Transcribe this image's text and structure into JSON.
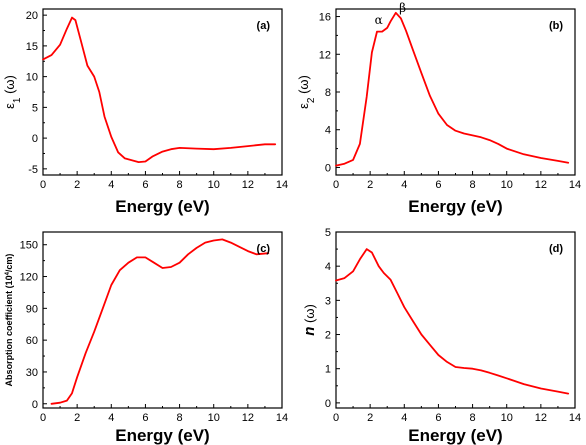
{
  "chart_data": [
    {
      "type": "line",
      "panel_label": "(a)",
      "xlabel": "Energy (eV)",
      "ylabel": "ε1 (ω)",
      "ylabel_parts": {
        "base": "ε",
        "sub": "1",
        "rest": " (ω)"
      },
      "xlim": [
        0,
        14
      ],
      "ylim": [
        -6,
        21
      ],
      "xticks": [
        0,
        2,
        4,
        6,
        8,
        10,
        12,
        14
      ],
      "yticks": [
        -5,
        0,
        5,
        10,
        15,
        20
      ],
      "color": "#ff0000",
      "annotations": [],
      "x": [
        0,
        0.5,
        1.0,
        1.4,
        1.7,
        1.9,
        2.2,
        2.6,
        3.0,
        3.3,
        3.6,
        4.0,
        4.4,
        4.8,
        5.2,
        5.6,
        6.0,
        6.4,
        7.0,
        7.5,
        8.0,
        9.0,
        10.0,
        11.0,
        12.0,
        13.0,
        13.6
      ],
      "y": [
        12.8,
        13.5,
        15.2,
        17.8,
        19.6,
        19.2,
        16.0,
        11.8,
        10.0,
        7.5,
        3.5,
        0.2,
        -2.3,
        -3.3,
        -3.6,
        -3.9,
        -3.8,
        -3.0,
        -2.2,
        -1.8,
        -1.6,
        -1.7,
        -1.8,
        -1.6,
        -1.3,
        -1.0,
        -1.0
      ]
    },
    {
      "type": "line",
      "panel_label": "(b)",
      "xlabel": "Energy (eV)",
      "ylabel": "ε2 (ω)",
      "ylabel_parts": {
        "base": "ε",
        "sub": "2",
        "rest": " (ω)"
      },
      "xlim": [
        0,
        14
      ],
      "ylim": [
        -0.8,
        16.8
      ],
      "xticks": [
        0,
        2,
        4,
        6,
        8,
        10,
        12,
        14
      ],
      "yticks": [
        0,
        4,
        8,
        12,
        16
      ],
      "color": "#ff0000",
      "annotations": [
        {
          "text": "α",
          "x": 2.5,
          "y": 15.2
        },
        {
          "text": "β",
          "x": 3.9,
          "y": 16.5
        }
      ],
      "x": [
        0,
        0.5,
        1.0,
        1.4,
        1.8,
        2.1,
        2.4,
        2.7,
        3.0,
        3.2,
        3.5,
        3.8,
        4.1,
        4.5,
        5.0,
        5.5,
        6.0,
        6.5,
        7.0,
        7.5,
        8.0,
        8.5,
        9.0,
        9.5,
        10.0,
        11.0,
        12.0,
        13.0,
        13.6
      ],
      "y": [
        0.2,
        0.4,
        0.8,
        2.5,
        7.5,
        12.2,
        14.4,
        14.4,
        14.8,
        15.5,
        16.4,
        15.8,
        14.5,
        12.5,
        10.0,
        7.6,
        5.7,
        4.5,
        3.9,
        3.6,
        3.4,
        3.2,
        2.9,
        2.5,
        2.0,
        1.4,
        1.0,
        0.7,
        0.5
      ]
    },
    {
      "type": "line",
      "panel_label": "(c)",
      "xlabel": "Energy (eV)",
      "ylabel": "Absorption coefficient (10⁴/cm)",
      "ylabel_parts": {
        "base": "Absorption coefficient (10",
        "sup": "4",
        "rest": "/cm)"
      },
      "xlim": [
        0,
        14
      ],
      "ylim": [
        -4,
        162
      ],
      "xticks": [
        0,
        2,
        4,
        6,
        8,
        10,
        12,
        14
      ],
      "yticks": [
        0,
        30,
        60,
        90,
        120,
        150
      ],
      "color": "#ff0000",
      "annotations": [],
      "x": [
        0.5,
        1.0,
        1.4,
        1.7,
        2.0,
        2.5,
        3.0,
        3.5,
        4.0,
        4.5,
        5.0,
        5.5,
        6.0,
        6.5,
        7.0,
        7.5,
        8.0,
        8.5,
        9.0,
        9.5,
        10.0,
        10.5,
        11.0,
        11.5,
        12.0,
        12.5,
        13.2
      ],
      "y": [
        0,
        1,
        3,
        10,
        25,
        48,
        68,
        90,
        112,
        126,
        133,
        138,
        138,
        133,
        128,
        129,
        133,
        141,
        147,
        152,
        154,
        155,
        152,
        148,
        144,
        141,
        142
      ]
    },
    {
      "type": "line",
      "panel_label": "(d)",
      "xlabel": "Energy (eV)",
      "ylabel": "n (ω)",
      "ylabel_parts": {
        "base": "n",
        "sub": "",
        "rest": " (ω)"
      },
      "xlim": [
        0,
        14
      ],
      "ylim": [
        -0.15,
        5.0
      ],
      "xticks": [
        0,
        2,
        4,
        6,
        8,
        10,
        12,
        14
      ],
      "yticks": [
        0,
        1,
        2,
        3,
        4,
        5
      ],
      "color": "#ff0000",
      "annotations": [],
      "x": [
        0,
        0.5,
        1.0,
        1.4,
        1.8,
        2.1,
        2.5,
        2.8,
        3.2,
        3.6,
        4.0,
        4.5,
        5.0,
        5.5,
        6.0,
        6.5,
        7.0,
        7.5,
        8.0,
        8.5,
        9.0,
        9.5,
        10.0,
        11.0,
        12.0,
        13.0,
        13.6
      ],
      "y": [
        3.58,
        3.65,
        3.85,
        4.2,
        4.5,
        4.4,
        4.0,
        3.8,
        3.6,
        3.2,
        2.8,
        2.4,
        2.0,
        1.7,
        1.4,
        1.2,
        1.05,
        1.02,
        1.0,
        0.95,
        0.88,
        0.8,
        0.72,
        0.55,
        0.42,
        0.33,
        0.27
      ]
    }
  ]
}
